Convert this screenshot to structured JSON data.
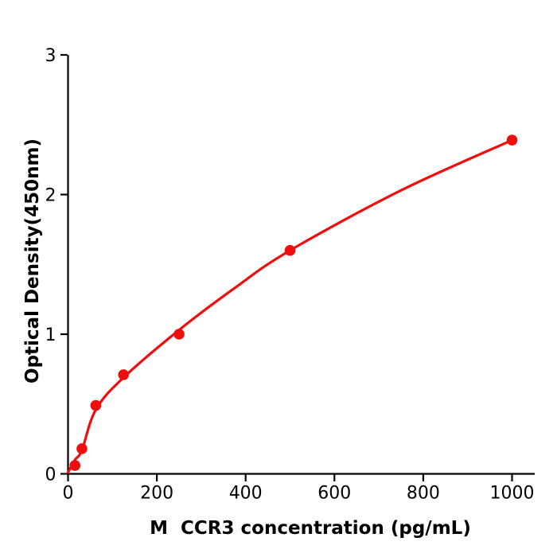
{
  "chart_data": {
    "type": "scatter",
    "title": "",
    "xlabel": "M  CCR3 concentration (pg/mL)",
    "ylabel": "Optical Density(450nm)",
    "points": {
      "x": [
        15.6,
        31.25,
        62.5,
        125,
        250,
        500,
        1000
      ],
      "y": [
        0.06,
        0.18,
        0.49,
        0.71,
        1.0,
        1.6,
        2.39
      ]
    },
    "fit_curve": {
      "x": [
        0,
        15.6,
        31.25,
        62.5,
        125,
        250,
        375,
        500,
        750,
        1000
      ],
      "y": [
        0.01,
        0.1,
        0.17,
        0.46,
        0.69,
        1.03,
        1.33,
        1.6,
        2.03,
        2.39
      ]
    },
    "xticks": {
      "values": [
        0,
        200,
        400,
        600,
        800,
        1000
      ],
      "labels": [
        "0",
        "200",
        "400",
        "600",
        "800",
        "1000"
      ]
    },
    "yticks": {
      "values": [
        0,
        1,
        2,
        3
      ],
      "labels": [
        "0",
        "1",
        "2",
        "3"
      ]
    },
    "xlim": [
      0,
      1051
    ],
    "ylim": [
      0,
      3
    ],
    "grid": false,
    "legend": false,
    "colors": {
      "marker": "#ee0e0e",
      "line": "#ee0e0e",
      "axis": "#000000",
      "tick_text": "#000000",
      "background": "#ffffff"
    }
  }
}
